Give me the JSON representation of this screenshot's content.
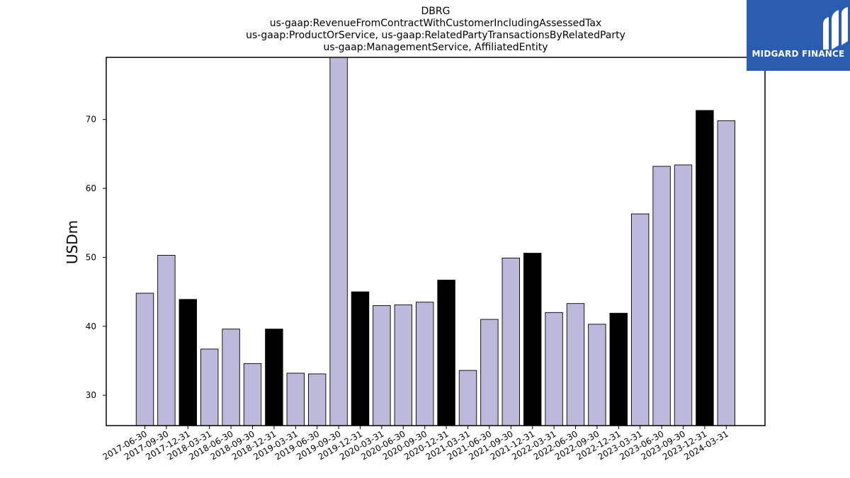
{
  "chart_data": {
    "type": "bar",
    "title_lines": [
      "DBRG",
      "us-gaap:RevenueFromContractWithCustomerIncludingAssessedTax",
      "us-gaap:ProductOrService, us-gaap:RelatedPartyTransactionsByRelatedParty",
      "us-gaap:ManagementService, AffiliatedEntity"
    ],
    "xlabel": "",
    "ylabel": "USDm",
    "ylim": [
      25.6,
      79
    ],
    "yticks": [
      30,
      40,
      50,
      60,
      70
    ],
    "categories": [
      "2017-06-30",
      "2017-09-30",
      "2017-12-31",
      "2018-03-31",
      "2018-06-30",
      "2018-09-30",
      "2018-12-31",
      "2019-03-31",
      "2019-06-30",
      "2019-09-30",
      "2019-12-31",
      "2020-03-31",
      "2020-06-30",
      "2020-09-30",
      "2020-12-31",
      "2021-03-31",
      "2021-06-30",
      "2021-09-30",
      "2021-12-31",
      "2022-03-31",
      "2022-06-30",
      "2022-09-30",
      "2022-12-31",
      "2023-03-31",
      "2023-06-30",
      "2023-09-30",
      "2023-12-31",
      "2024-03-31"
    ],
    "values": [
      44.8,
      50.3,
      43.9,
      36.7,
      39.6,
      34.6,
      39.6,
      33.2,
      33.1,
      79.5,
      45.0,
      43.0,
      43.1,
      43.5,
      46.7,
      33.6,
      41.0,
      49.9,
      50.6,
      42.0,
      43.3,
      40.3,
      41.9,
      56.3,
      63.2,
      63.4,
      71.3,
      69.8
    ],
    "highlight": [
      false,
      false,
      true,
      false,
      false,
      false,
      true,
      false,
      false,
      false,
      true,
      false,
      false,
      false,
      true,
      false,
      false,
      false,
      true,
      false,
      false,
      false,
      true,
      false,
      false,
      false,
      true,
      false
    ],
    "colors": {
      "normal": "#bdb9da",
      "highlight": "#000000",
      "edge": "#000000"
    },
    "grid": false
  },
  "logo": {
    "text": "MIDGARD FINANCE",
    "background": "#2a5db0"
  }
}
